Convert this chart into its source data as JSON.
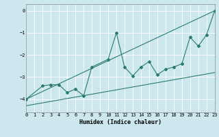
{
  "xlabel": "Humidex (Indice chaleur)",
  "bg_color": "#cce8ee",
  "grid_color": "#ffffff",
  "line_color": "#2a7a6e",
  "x_min": 0,
  "x_max": 23,
  "y_min": -4.6,
  "y_max": 0.3,
  "upper_line_x": [
    0,
    23
  ],
  "upper_line_y": [
    -4.0,
    0.0
  ],
  "lower_line_x": [
    0,
    23
  ],
  "lower_line_y": [
    -4.3,
    -2.8
  ],
  "zigzag_x": [
    0,
    2,
    3,
    4,
    5,
    6,
    7,
    8,
    10,
    11,
    12,
    13,
    14,
    15,
    16,
    17,
    18,
    19,
    20,
    21,
    22,
    23
  ],
  "zigzag_y": [
    -4.0,
    -3.4,
    -3.35,
    -3.35,
    -3.7,
    -3.55,
    -3.85,
    -2.55,
    -2.2,
    -1.0,
    -2.55,
    -2.95,
    -2.55,
    -2.3,
    -2.9,
    -2.65,
    -2.55,
    -2.4,
    -1.2,
    -1.6,
    -1.1,
    0.0
  ],
  "yticks": [
    0,
    -1,
    -2,
    -3,
    -4
  ],
  "xticks": [
    0,
    1,
    2,
    3,
    4,
    5,
    6,
    7,
    8,
    9,
    10,
    11,
    12,
    13,
    14,
    15,
    16,
    17,
    18,
    19,
    20,
    21,
    22,
    23
  ],
  "tick_labelsize": 5,
  "xlabel_fontsize": 6,
  "linewidth": 0.8,
  "markersize": 2.0
}
